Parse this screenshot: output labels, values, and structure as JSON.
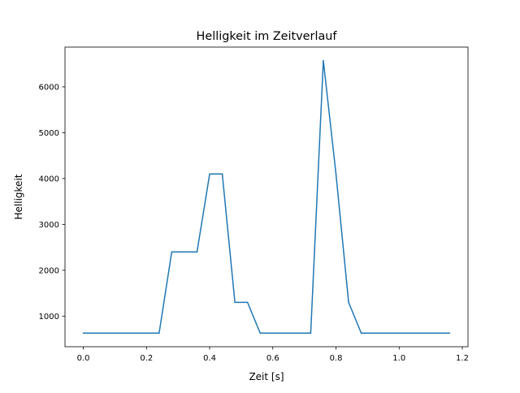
{
  "chart_data": {
    "type": "line",
    "title": "Helligkeit im Zeitverlauf",
    "xlabel": "Zeit [s]",
    "ylabel": "Helligkeit",
    "xlim": [
      -0.058,
      1.218
    ],
    "ylim": [
      333,
      6867
    ],
    "grid": false,
    "xticks": [
      0.0,
      0.2,
      0.4,
      0.6,
      0.8,
      1.0,
      1.2
    ],
    "xtick_labels": [
      "0.0",
      "0.2",
      "0.4",
      "0.6",
      "0.8",
      "1.0",
      "1.2"
    ],
    "yticks": [
      1000,
      2000,
      3000,
      4000,
      5000,
      6000
    ],
    "ytick_labels": [
      "1000",
      "2000",
      "3000",
      "4000",
      "5000",
      "6000"
    ],
    "series": [
      {
        "name": "Helligkeit",
        "color": "#1f77b4",
        "x": [
          0.0,
          0.04,
          0.08,
          0.12,
          0.16,
          0.2,
          0.24,
          0.28,
          0.32,
          0.36,
          0.4,
          0.44,
          0.48,
          0.52,
          0.56,
          0.6,
          0.64,
          0.68,
          0.72,
          0.76,
          0.8,
          0.84,
          0.88,
          0.92,
          0.96,
          1.0,
          1.04,
          1.08,
          1.12,
          1.16
        ],
        "y": [
          630,
          630,
          630,
          630,
          630,
          630,
          630,
          2400,
          2400,
          2400,
          4100,
          4100,
          1300,
          1300,
          630,
          630,
          630,
          630,
          630,
          6570,
          4100,
          1300,
          630,
          630,
          630,
          630,
          630,
          630,
          630,
          630
        ]
      }
    ]
  }
}
